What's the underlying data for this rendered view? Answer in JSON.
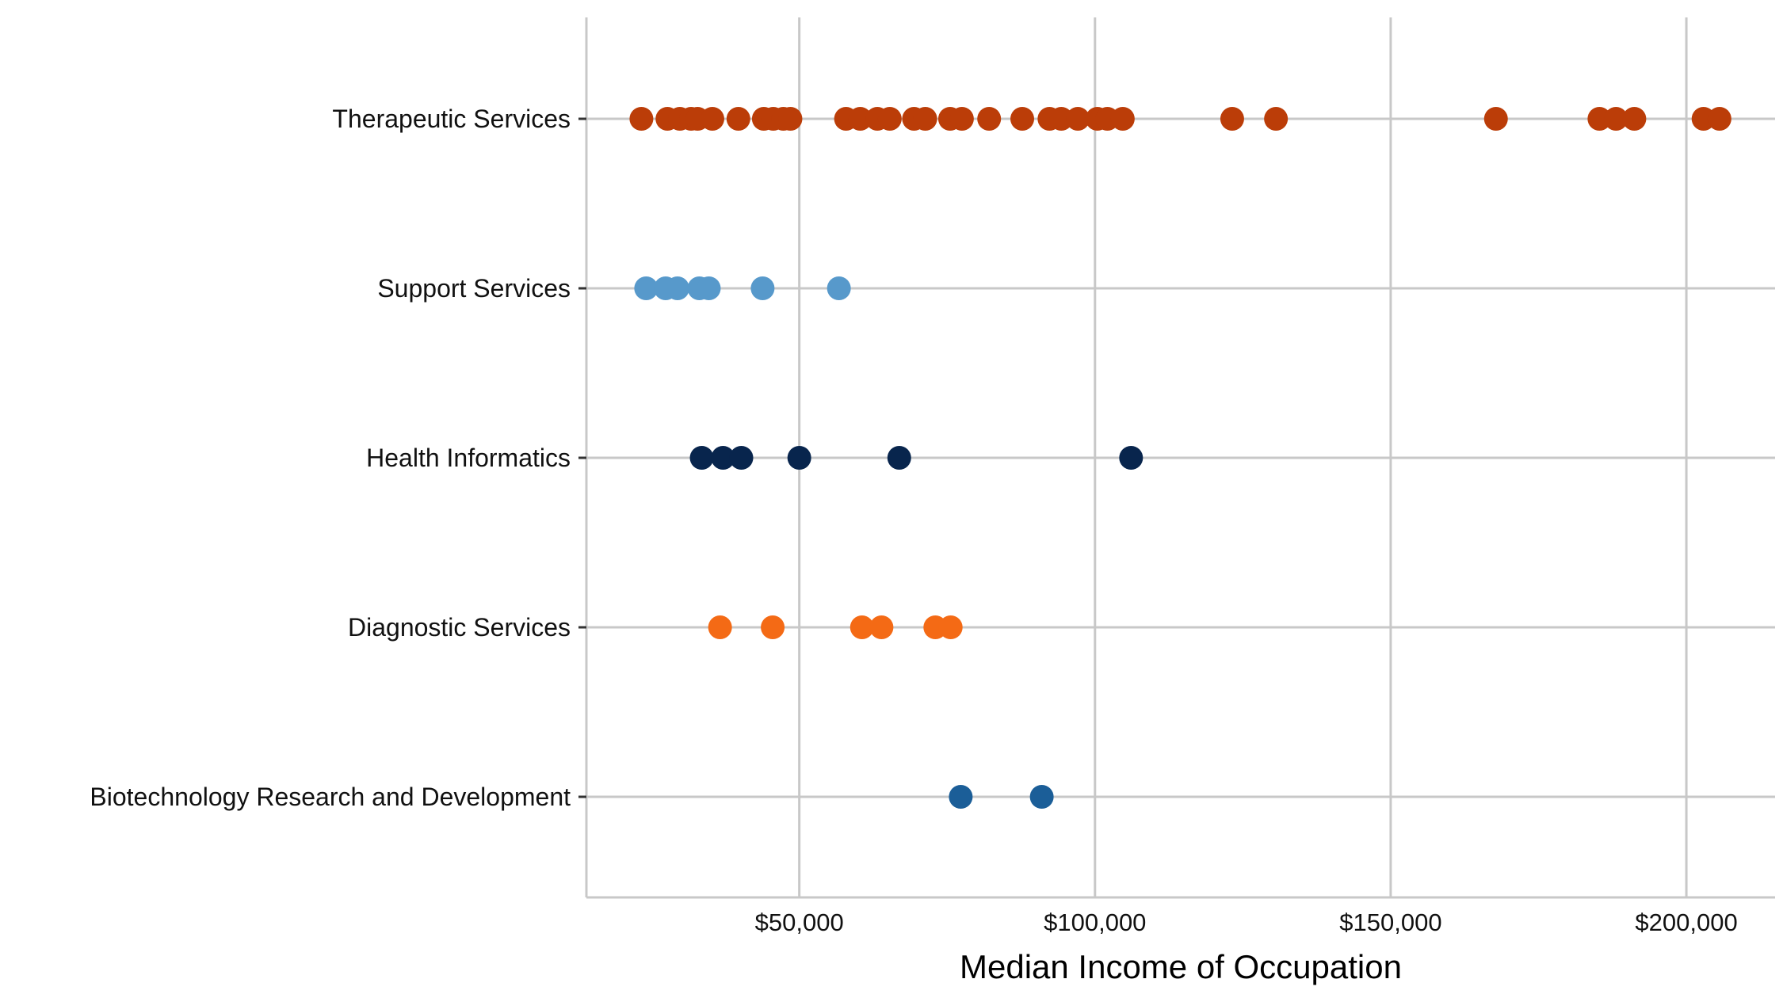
{
  "chart_data": {
    "type": "scatter",
    "title": "",
    "xlabel": "Median Income of Occupation",
    "ylabel": "",
    "xlim": [
      14000,
      215000
    ],
    "x_ticks": [
      50000,
      100000,
      150000,
      200000
    ],
    "x_tick_labels": [
      "$50,000",
      "$100,000",
      "$150,000",
      "$200,000"
    ],
    "grid": true,
    "legend": "none",
    "categories": [
      "Therapeutic Services",
      "Support Services",
      "Health Informatics",
      "Diagnostic Services",
      "Biotechnology Research and Development"
    ],
    "series": [
      {
        "category": "Therapeutic Services",
        "color": "#bb3d08",
        "x": [
          23300,
          27700,
          29800,
          31700,
          32800,
          35300,
          39700,
          44000,
          45600,
          47300,
          48500,
          57900,
          60300,
          63200,
          65300,
          69400,
          71300,
          75500,
          77500,
          82100,
          87700,
          92300,
          94300,
          97100,
          100400,
          102100,
          104700,
          123200,
          130600,
          167800,
          185300,
          188100,
          191200,
          202900,
          205600
        ]
      },
      {
        "category": "Support Services",
        "color": "#5799cb",
        "x": [
          24100,
          27400,
          29400,
          33100,
          34700,
          43800,
          56700
        ]
      },
      {
        "category": "Health Informatics",
        "color": "#08254d",
        "x": [
          33500,
          37100,
          40200,
          50000,
          66900,
          106100
        ]
      },
      {
        "category": "Diagnostic Services",
        "color": "#f46a15",
        "x": [
          36600,
          45500,
          60600,
          63900,
          73000,
          75600
        ]
      },
      {
        "category": "Biotechnology Research and Development",
        "color": "#1b5e98",
        "x": [
          77300,
          91000
        ]
      }
    ]
  }
}
